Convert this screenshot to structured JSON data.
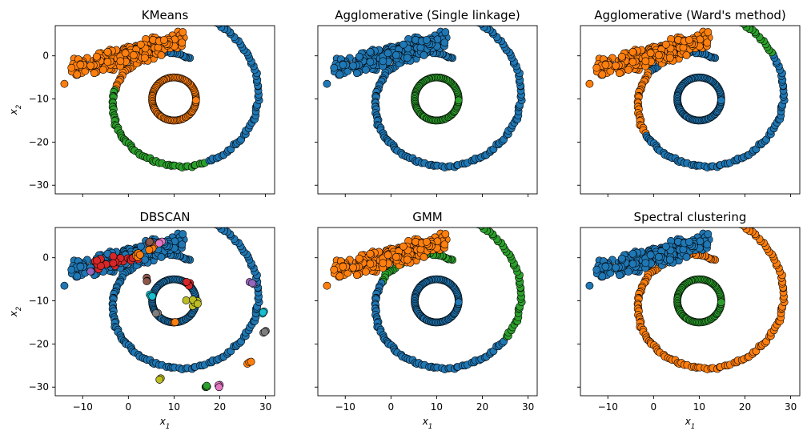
{
  "figure": {
    "palette": {
      "tab-blue": "#1f77b4",
      "tab-orange": "#ff7f0e",
      "tab-green": "#2ca02c",
      "tab-red": "#d62728",
      "tab-purple": "#9467bd",
      "tab-brown": "#8c564b",
      "tab-pink": "#e377c2",
      "tab-gray": "#7f7f7f",
      "tab-olive": "#bcbd22",
      "tab-cyan": "#17becf"
    },
    "marker_edge_color": "#000000"
  },
  "chart_data": [
    {
      "type": "scatter",
      "title": "KMeans",
      "xlabel": "",
      "ylabel": "x2",
      "xlim": [
        -16,
        32
      ],
      "ylim": [
        -32,
        7
      ],
      "xticks": [],
      "yticks": [
        0,
        -10,
        -20,
        -30
      ],
      "grid": false,
      "regions": [
        {
          "shape": "blob",
          "label": 1
        },
        {
          "shape": "inner",
          "from": 0,
          "to": 360,
          "label": 1
        },
        {
          "shape": "spiral",
          "from": 70,
          "to": 120,
          "label": 0
        },
        {
          "shape": "spiral",
          "from": 120,
          "to": 170,
          "label": 1
        },
        {
          "shape": "spiral",
          "from": 170,
          "to": 265,
          "label": 2
        },
        {
          "shape": "spiral",
          "from": 265,
          "to": 295,
          "label": 2
        },
        {
          "shape": "spiral",
          "from": 295,
          "to": 450,
          "label": 0
        }
      ]
    },
    {
      "type": "scatter",
      "title": "Agglomerative (Single linkage)",
      "xlabel": "",
      "ylabel": "",
      "xlim": [
        -16,
        32
      ],
      "ylim": [
        -32,
        7
      ],
      "xticks": [],
      "yticks": [],
      "grid": false,
      "regions": [
        {
          "shape": "blob",
          "label": 0
        },
        {
          "shape": "inner",
          "from": 0,
          "to": 360,
          "label": 2
        },
        {
          "shape": "spiral",
          "from": 70,
          "to": 450,
          "label": 0
        }
      ]
    },
    {
      "type": "scatter",
      "title": "Agglomerative (Ward's method)",
      "xlabel": "",
      "ylabel": "",
      "xlim": [
        -16,
        32
      ],
      "ylim": [
        -32,
        7
      ],
      "xticks": [],
      "yticks": [],
      "grid": false,
      "regions": [
        {
          "shape": "blob",
          "label": 1
        },
        {
          "shape": "inner",
          "from": 0,
          "to": 360,
          "label": 0
        },
        {
          "shape": "spiral",
          "from": 70,
          "to": 122,
          "label": 0
        },
        {
          "shape": "spiral",
          "from": 122,
          "to": 150,
          "label": 0
        },
        {
          "shape": "spiral",
          "from": 150,
          "to": 215,
          "label": 1
        },
        {
          "shape": "spiral",
          "from": 215,
          "to": 395,
          "label": 0
        },
        {
          "shape": "spiral",
          "from": 395,
          "to": 450,
          "label": 2
        },
        {
          "shape": "spiral",
          "from": 395,
          "to": 430,
          "label": 2
        }
      ]
    },
    {
      "type": "scatter",
      "title": "DBSCAN",
      "xlabel": "x1",
      "ylabel": "x2",
      "xlim": [
        -16,
        32
      ],
      "ylim": [
        -32,
        7
      ],
      "xticks": [
        -10,
        0,
        10,
        20,
        30
      ],
      "yticks": [
        0,
        -10,
        -20,
        -30
      ],
      "grid": false,
      "regions": [
        {
          "shape": "blob",
          "label": 0
        },
        {
          "shape": "inner",
          "from": 0,
          "to": 360,
          "label": 0
        },
        {
          "shape": "spiral",
          "from": 70,
          "to": 450,
          "label": 0
        }
      ],
      "highlights": [
        {
          "x": -6,
          "y": -2,
          "r": 2.2,
          "label": 3
        },
        {
          "x": -3,
          "y": -1,
          "r": 2.0,
          "label": 3
        },
        {
          "x": 1,
          "y": 0,
          "r": 1.5,
          "label": 3
        },
        {
          "x": 2,
          "y": 1,
          "r": 1.2,
          "label": 1
        },
        {
          "x": 5,
          "y": 2,
          "r": 1.2,
          "label": 1
        },
        {
          "x": 7,
          "y": 3.5,
          "r": 0.8,
          "label": 6
        },
        {
          "x": 5,
          "y": 3.5,
          "r": 0.8,
          "label": 5
        },
        {
          "x": -8,
          "y": -3,
          "r": 0.6,
          "label": 4
        },
        {
          "x": 4,
          "y": -5,
          "r": 0.8,
          "label": 5
        },
        {
          "x": 13,
          "y": -6,
          "r": 0.9,
          "label": 3
        },
        {
          "x": 14,
          "y": -10,
          "r": 1.5,
          "label": 8
        },
        {
          "x": 10,
          "y": -15,
          "r": 0.6,
          "label": 1
        },
        {
          "x": 5,
          "y": -9,
          "r": 0.7,
          "label": 9
        },
        {
          "x": 6,
          "y": -13,
          "r": 0.6,
          "label": 7
        },
        {
          "x": 27,
          "y": -6,
          "r": 0.7,
          "label": 4
        },
        {
          "x": 29.5,
          "y": -13,
          "r": 0.8,
          "label": 9
        },
        {
          "x": 29.5,
          "y": -17,
          "r": 0.7,
          "label": 7
        },
        {
          "x": 7,
          "y": -28,
          "r": 0.8,
          "label": 8
        },
        {
          "x": 17,
          "y": -30,
          "r": 1.0,
          "label": 2
        },
        {
          "x": 20,
          "y": -29.5,
          "r": 0.8,
          "label": 6
        },
        {
          "x": 26.5,
          "y": -24.5,
          "r": 0.8,
          "label": 1
        }
      ]
    },
    {
      "type": "scatter",
      "title": "GMM",
      "xlabel": "x1",
      "ylabel": "",
      "xlim": [
        -16,
        32
      ],
      "ylim": [
        -32,
        7
      ],
      "xticks": [
        -10,
        0,
        10,
        20,
        30
      ],
      "yticks": [],
      "grid": false,
      "regions": [
        {
          "shape": "blob",
          "label": 1
        },
        {
          "shape": "inner",
          "from": 0,
          "to": 360,
          "label": 0
        },
        {
          "shape": "spiral",
          "from": 70,
          "to": 120,
          "label": 2
        },
        {
          "shape": "spiral",
          "from": 120,
          "to": 160,
          "label": 2
        },
        {
          "shape": "spiral",
          "from": 160,
          "to": 330,
          "label": 0
        },
        {
          "shape": "spiral",
          "from": 330,
          "to": 450,
          "label": 2
        }
      ]
    },
    {
      "type": "scatter",
      "title": "Spectral clustering",
      "xlabel": "x1",
      "ylabel": "",
      "xlim": [
        -16,
        32
      ],
      "ylim": [
        -32,
        7
      ],
      "xticks": [
        -10,
        0,
        10,
        20,
        30
      ],
      "yticks": [],
      "grid": false,
      "regions": [
        {
          "shape": "blob",
          "label": 0
        },
        {
          "shape": "inner",
          "from": 0,
          "to": 360,
          "label": 2
        },
        {
          "shape": "spiral",
          "from": 70,
          "to": 450,
          "label": 1
        }
      ]
    }
  ]
}
